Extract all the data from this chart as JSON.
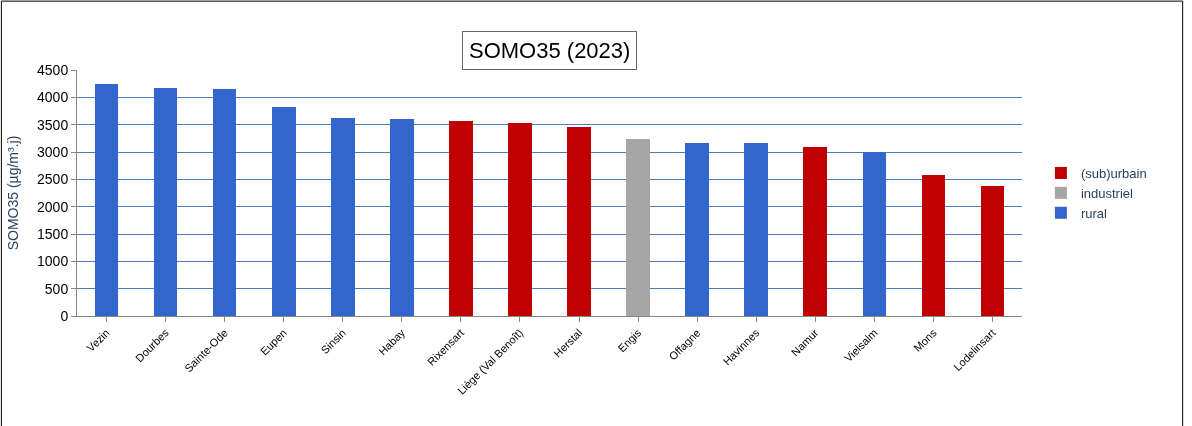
{
  "chart_data": {
    "type": "bar",
    "title": "SOMO35 (2023)",
    "ylabel": "SOMO35 (µg/m³.j)",
    "categories": [
      "Vezin",
      "Dourbes",
      "Sainte-Ode",
      "Eupen",
      "Sinsin",
      "Habay",
      "Rixensart",
      "Liège (Val Benoît)",
      "Herstal",
      "Engis",
      "Offagne",
      "Havinnes",
      "Namur",
      "Vielsalm",
      "Mons",
      "Lodelinsart"
    ],
    "stacked": true,
    "series": [
      {
        "name": "(sub)urbain",
        "color": "#c00000",
        "values": [
          null,
          null,
          null,
          null,
          null,
          null,
          3560,
          3530,
          3450,
          null,
          null,
          null,
          3090,
          null,
          2580,
          2370
        ]
      },
      {
        "name": "industriel",
        "color": "#a6a6a6",
        "values": [
          null,
          null,
          null,
          null,
          null,
          null,
          null,
          null,
          null,
          3230,
          null,
          null,
          null,
          null,
          null,
          null
        ]
      },
      {
        "name": "rural",
        "color": "#3366cc",
        "values": [
          4240,
          4170,
          4150,
          3820,
          3620,
          3600,
          null,
          null,
          null,
          null,
          3170,
          3170,
          null,
          3000,
          null,
          null
        ]
      }
    ],
    "ylim": [
      0,
      4500
    ],
    "yticks": [
      0,
      500,
      1000,
      1500,
      2000,
      2500,
      3000,
      3500,
      4000,
      4500
    ],
    "grid": "y",
    "legend": "right"
  }
}
